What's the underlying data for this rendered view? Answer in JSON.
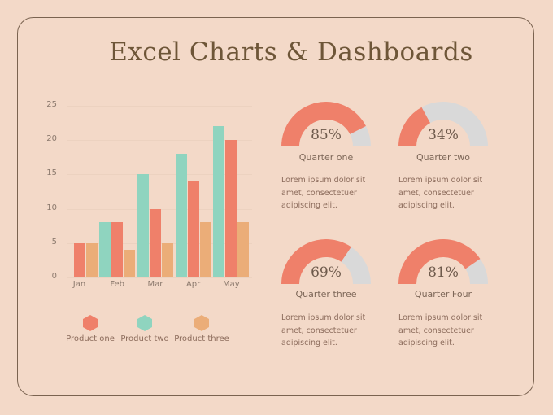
{
  "title": "Excel Charts & Dashboards",
  "colors": {
    "background": "#f3d9c8",
    "frame": "#7a6350",
    "product_one": "#ef806a",
    "product_two": "#8fd4bf",
    "product_three": "#ebad78",
    "gauge_fill": "#ef806a",
    "gauge_track": "#d9d9d9"
  },
  "chart_data": {
    "type": "bar",
    "title": "",
    "xlabel": "",
    "ylabel": "",
    "ylim": [
      0,
      25
    ],
    "yticks": [
      0,
      5,
      10,
      15,
      20,
      25
    ],
    "categories": [
      "Jan",
      "Feb",
      "Mar",
      "Apr",
      "May"
    ],
    "series": [
      {
        "name": "Product two",
        "color": "#8fd4bf",
        "values": [
          null,
          8,
          15,
          18,
          22
        ]
      },
      {
        "name": "Product one",
        "color": "#ef806a",
        "values": [
          5,
          8,
          10,
          14,
          20
        ]
      },
      {
        "name": "Product three",
        "color": "#ebad78",
        "values": [
          5,
          4,
          5,
          8,
          8
        ]
      }
    ],
    "legend_position": "bottom",
    "grid": true
  },
  "legend": [
    {
      "label": "Product one",
      "color": "#ef806a",
      "icon": "hexagon"
    },
    {
      "label": "Product two",
      "color": "#8fd4bf",
      "icon": "hexagon"
    },
    {
      "label": "Product three",
      "color": "#ebad78",
      "icon": "hexagon"
    }
  ],
  "gauges": [
    {
      "value": 85,
      "label": "85%",
      "name": "Quarter one",
      "description": "Lorem ipsum dolor sit amet, consectetuer adipiscing elit."
    },
    {
      "value": 34,
      "label": "34%",
      "name": "Quarter two",
      "description": "Lorem ipsum dolor sit amet, consectetuer adipiscing elit."
    },
    {
      "value": 69,
      "label": "69%",
      "name": "Quarter three",
      "description": "Lorem ipsum dolor sit amet, consectetuer adipiscing elit."
    },
    {
      "value": 81,
      "label": "81%",
      "name": "Quarter Four",
      "description": "Lorem ipsum dolor sit amet, consectetuer adipiscing elit."
    }
  ]
}
